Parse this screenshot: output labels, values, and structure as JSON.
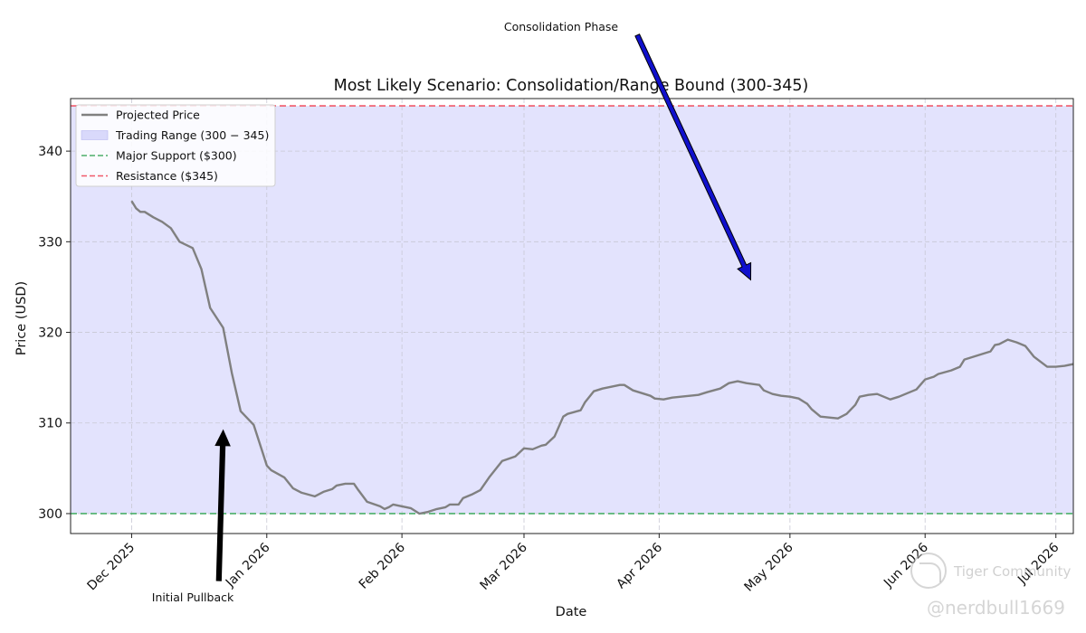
{
  "chart_data": {
    "type": "line",
    "title": "Most Likely Scenario: Consolidation/Range Bound (300-345)",
    "xlabel": "Date",
    "ylabel": "Price (USD)",
    "x_ticks": [
      "Dec 2025",
      "Jan 2026",
      "Feb 2026",
      "Mar 2026",
      "Apr 2026",
      "May 2026",
      "Jun 2026",
      "Jul 2026"
    ],
    "y_ticks": [
      300,
      310,
      320,
      330,
      340
    ],
    "xlim": [
      "2025-11-17",
      "2026-07-05"
    ],
    "ylim": [
      297.8,
      345.8
    ],
    "grid": true,
    "legend_position": "top-left",
    "legend": [
      {
        "label": "Projected Price",
        "kind": "line",
        "color": "#808080"
      },
      {
        "label": "Trading Range (300 − 345)",
        "kind": "patch",
        "color": "#d9d9fb"
      },
      {
        "label": "Major Support ($300)",
        "kind": "dashed",
        "color": "#4caf6a"
      },
      {
        "label": "Resistance ($345)",
        "kind": "dashed",
        "color": "#f05a6a"
      }
    ],
    "range_band": {
      "low": 300,
      "high": 345,
      "color": "#e3e3fd"
    },
    "support": {
      "value": 300,
      "color": "#4caf6a"
    },
    "resistance": {
      "value": 345,
      "color": "#f05a6a"
    },
    "series": [
      {
        "name": "Projected Price",
        "color": "#808080",
        "points": [
          [
            "2025-12-01",
            334.5
          ],
          [
            "2025-12-02",
            333.7
          ],
          [
            "2025-12-03",
            333.3
          ],
          [
            "2025-12-04",
            333.3
          ],
          [
            "2025-12-06",
            332.7
          ],
          [
            "2025-12-08",
            332.2
          ],
          [
            "2025-12-10",
            331.5
          ],
          [
            "2025-12-12",
            330.0
          ],
          [
            "2025-12-15",
            329.3
          ],
          [
            "2025-12-17",
            327.0
          ],
          [
            "2025-12-19",
            322.7
          ],
          [
            "2025-12-22",
            320.5
          ],
          [
            "2025-12-24",
            315.5
          ],
          [
            "2025-12-26",
            311.3
          ],
          [
            "2025-12-29",
            309.8
          ],
          [
            "2025-12-31",
            306.8
          ],
          [
            "2026-01-01",
            305.3
          ],
          [
            "2026-01-02",
            304.8
          ],
          [
            "2026-01-05",
            304.0
          ],
          [
            "2026-01-07",
            302.8
          ],
          [
            "2026-01-09",
            302.3
          ],
          [
            "2026-01-12",
            301.9
          ],
          [
            "2026-01-14",
            302.4
          ],
          [
            "2026-01-16",
            302.7
          ],
          [
            "2026-01-17",
            303.1
          ],
          [
            "2026-01-19",
            303.3
          ],
          [
            "2026-01-21",
            303.3
          ],
          [
            "2026-01-22",
            302.6
          ],
          [
            "2026-01-24",
            301.3
          ],
          [
            "2026-01-27",
            300.8
          ],
          [
            "2026-01-28",
            300.5
          ],
          [
            "2026-01-29",
            300.7
          ],
          [
            "2026-01-30",
            301.0
          ],
          [
            "2026-02-01",
            300.8
          ],
          [
            "2026-02-03",
            300.6
          ],
          [
            "2026-02-05",
            300.0
          ],
          [
            "2026-02-07",
            300.2
          ],
          [
            "2026-02-09",
            300.5
          ],
          [
            "2026-02-11",
            300.7
          ],
          [
            "2026-02-12",
            301.0
          ],
          [
            "2026-02-14",
            301.0
          ],
          [
            "2026-02-15",
            301.7
          ],
          [
            "2026-02-17",
            302.1
          ],
          [
            "2026-02-19",
            302.6
          ],
          [
            "2026-02-21",
            304.0
          ],
          [
            "2026-02-24",
            305.8
          ],
          [
            "2026-02-27",
            306.3
          ],
          [
            "2026-03-01",
            307.2
          ],
          [
            "2026-03-03",
            307.1
          ],
          [
            "2026-03-05",
            307.5
          ],
          [
            "2026-03-06",
            307.6
          ],
          [
            "2026-03-08",
            308.5
          ],
          [
            "2026-03-10",
            310.7
          ],
          [
            "2026-03-11",
            311.0
          ],
          [
            "2026-03-14",
            311.4
          ],
          [
            "2026-03-15",
            312.3
          ],
          [
            "2026-03-17",
            313.5
          ],
          [
            "2026-03-19",
            313.8
          ],
          [
            "2026-03-21",
            314.0
          ],
          [
            "2026-03-23",
            314.2
          ],
          [
            "2026-03-24",
            314.2
          ],
          [
            "2026-03-26",
            313.6
          ],
          [
            "2026-03-28",
            313.3
          ],
          [
            "2026-03-30",
            313.0
          ],
          [
            "2026-03-31",
            312.7
          ],
          [
            "2026-04-02",
            312.6
          ],
          [
            "2026-04-04",
            312.8
          ],
          [
            "2026-04-06",
            312.9
          ],
          [
            "2026-04-08",
            313.0
          ],
          [
            "2026-04-10",
            313.1
          ],
          [
            "2026-04-12",
            313.4
          ],
          [
            "2026-04-15",
            313.8
          ],
          [
            "2026-04-17",
            314.4
          ],
          [
            "2026-04-19",
            314.6
          ],
          [
            "2026-04-21",
            314.4
          ],
          [
            "2026-04-24",
            314.2
          ],
          [
            "2026-04-25",
            313.6
          ],
          [
            "2026-04-27",
            313.2
          ],
          [
            "2026-04-29",
            313.0
          ],
          [
            "2026-05-01",
            312.9
          ],
          [
            "2026-05-03",
            312.7
          ],
          [
            "2026-05-05",
            312.1
          ],
          [
            "2026-05-06",
            311.5
          ],
          [
            "2026-05-08",
            310.7
          ],
          [
            "2026-05-10",
            310.6
          ],
          [
            "2026-05-12",
            310.5
          ],
          [
            "2026-05-14",
            311.0
          ],
          [
            "2026-05-16",
            312.0
          ],
          [
            "2026-05-17",
            312.9
          ],
          [
            "2026-05-19",
            313.1
          ],
          [
            "2026-05-21",
            313.2
          ],
          [
            "2026-05-23",
            312.8
          ],
          [
            "2026-05-24",
            312.6
          ],
          [
            "2026-05-26",
            312.9
          ],
          [
            "2026-05-28",
            313.3
          ],
          [
            "2026-05-30",
            313.7
          ],
          [
            "2026-06-01",
            314.8
          ],
          [
            "2026-06-03",
            315.1
          ],
          [
            "2026-06-04",
            315.4
          ],
          [
            "2026-06-07",
            315.8
          ],
          [
            "2026-06-09",
            316.2
          ],
          [
            "2026-06-10",
            317.0
          ],
          [
            "2026-06-12",
            317.3
          ],
          [
            "2026-06-14",
            317.6
          ],
          [
            "2026-06-16",
            317.9
          ],
          [
            "2026-06-17",
            318.6
          ],
          [
            "2026-06-18",
            318.7
          ],
          [
            "2026-06-20",
            319.2
          ],
          [
            "2026-06-22",
            318.9
          ],
          [
            "2026-06-24",
            318.5
          ],
          [
            "2026-06-26",
            317.3
          ],
          [
            "2026-06-29",
            316.2
          ],
          [
            "2026-07-01",
            316.2
          ],
          [
            "2026-07-03",
            316.3
          ],
          [
            "2026-07-05",
            316.5
          ]
        ]
      }
    ],
    "annotations": [
      {
        "text": "Consolidation Phase",
        "arrow_color": "#1010cc",
        "from": [
          "2026-03-27",
          352.8
        ],
        "to": [
          "2026-04-22",
          325.8
        ]
      },
      {
        "text": "Initial Pullback",
        "arrow_color": "#000000",
        "from": [
          "2025-12-21",
          292.6
        ],
        "to": [
          "2025-12-22",
          309.2
        ]
      }
    ]
  },
  "watermark": {
    "brand": "Tiger Community",
    "handle": "@nerdbull1669"
  }
}
